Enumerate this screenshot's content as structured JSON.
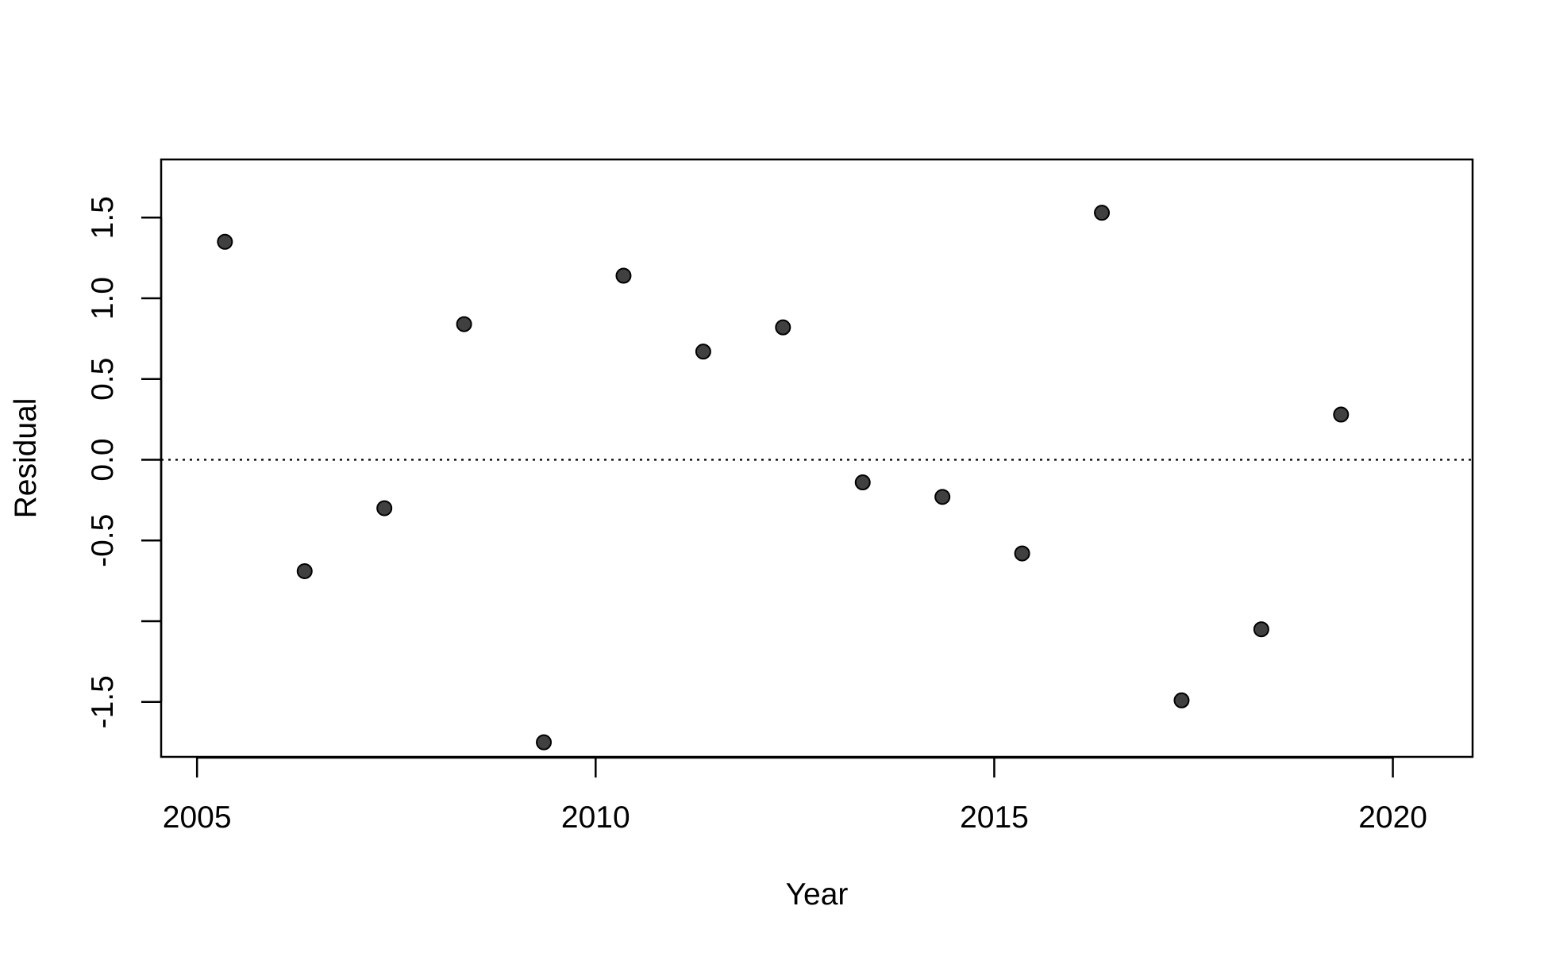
{
  "chart_data": {
    "type": "scatter",
    "title": "",
    "xlabel": "Year",
    "ylabel": "Residual",
    "xlim": [
      2004.55,
      2021.0
    ],
    "ylim": [
      -1.84,
      1.86
    ],
    "x_ticks": [
      2005,
      2010,
      2015,
      2020
    ],
    "x_tick_labels": [
      "2005",
      "2010",
      "2015",
      "2020"
    ],
    "y_ticks": [
      -1.5,
      -1.0,
      -0.5,
      0.0,
      0.5,
      1.0,
      1.5
    ],
    "y_tick_labels": [
      "-1.5",
      "",
      "-0.5",
      "0.0",
      "0.5",
      "1.0",
      "1.5"
    ],
    "reference_line": {
      "y": 0.0,
      "style": "dotted"
    },
    "grid": false,
    "legend": "none",
    "point_color": "#404040",
    "points": [
      {
        "x": 2005.35,
        "y": 1.35
      },
      {
        "x": 2006.35,
        "y": -0.69
      },
      {
        "x": 2007.35,
        "y": -0.3
      },
      {
        "x": 2008.35,
        "y": 0.84
      },
      {
        "x": 2009.35,
        "y": -1.75
      },
      {
        "x": 2010.35,
        "y": 1.14
      },
      {
        "x": 2011.35,
        "y": 0.67
      },
      {
        "x": 2012.35,
        "y": 0.82
      },
      {
        "x": 2013.35,
        "y": -0.14
      },
      {
        "x": 2014.35,
        "y": -0.23
      },
      {
        "x": 2015.35,
        "y": -0.58
      },
      {
        "x": 2016.35,
        "y": 1.53
      },
      {
        "x": 2017.35,
        "y": -1.49
      },
      {
        "x": 2018.35,
        "y": -1.05
      },
      {
        "x": 2019.35,
        "y": 0.28
      }
    ]
  }
}
